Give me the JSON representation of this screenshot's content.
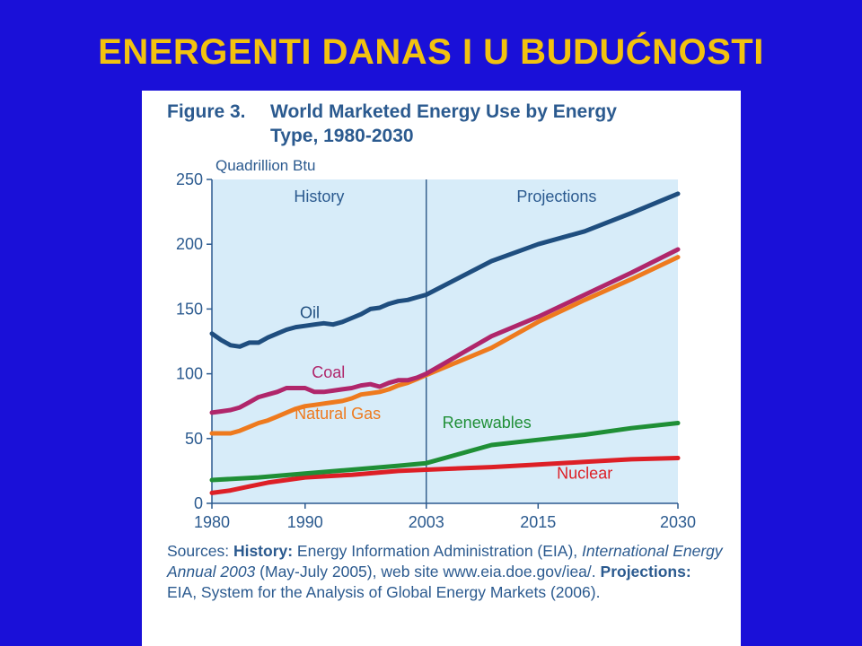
{
  "slide": {
    "title": "ENERGENTI DANAS I U BUDUĆNOSTI"
  },
  "figure": {
    "number": "Figure 3.",
    "title_line1": "World Marketed Energy Use by Energy",
    "title_line2": "Type, 1980-2030",
    "units": "Quadrillion Btu",
    "region_left": "History",
    "region_right": "Projections"
  },
  "sources": {
    "lead": "Sources: ",
    "history_label": "History:",
    "history_text": " Energy Information Administration (EIA), ",
    "publication": "International Energy Annual 2003",
    "history_text2": " (May-July 2005), web site www.eia.doe.gov/iea/. ",
    "projections_label": "Projections:",
    "projections_text": " EIA, System for the Analysis of Global Energy Markets (2006)."
  },
  "colors": {
    "background": "#1a10d8",
    "title": "#f2c20f",
    "plot_area": "#d7ecf9",
    "text": "#2b5a8f",
    "oil": "#1f4e7f",
    "coal": "#b0266b",
    "natural_gas": "#ee7a1e",
    "renewables": "#1f8f36",
    "nuclear": "#dd1f26"
  },
  "chart_data": {
    "type": "line",
    "title": "World Marketed Energy Use by Energy Type, 1980-2030",
    "ylabel": "Quadrillion Btu",
    "xlim": [
      1980,
      2030
    ],
    "ylim": [
      0,
      250
    ],
    "x_ticks": [
      1980,
      1990,
      2003,
      2015,
      2030
    ],
    "x_tick_labels": [
      "1980",
      "1990",
      "2003",
      "2015",
      "2030"
    ],
    "y_ticks": [
      0,
      50,
      100,
      150,
      200,
      250
    ],
    "history_end": 2003,
    "grid": false,
    "series": [
      {
        "name": "Oil",
        "color_key": "oil",
        "x": [
          1980,
          1981,
          1982,
          1983,
          1984,
          1985,
          1986,
          1987,
          1988,
          1989,
          1990,
          1991,
          1992,
          1993,
          1994,
          1995,
          1996,
          1997,
          1998,
          1999,
          2000,
          2001,
          2002,
          2003,
          2010,
          2015,
          2020,
          2025,
          2030
        ],
        "values": [
          131,
          126,
          122,
          121,
          124,
          124,
          128,
          131,
          134,
          136,
          137,
          138,
          139,
          138,
          140,
          143,
          146,
          150,
          151,
          154,
          156,
          157,
          159,
          161,
          187,
          200,
          210,
          224,
          239
        ]
      },
      {
        "name": "Coal",
        "color_key": "coal",
        "x": [
          1980,
          1981,
          1982,
          1983,
          1984,
          1985,
          1986,
          1987,
          1988,
          1989,
          1990,
          1991,
          1992,
          1993,
          1994,
          1995,
          1996,
          1997,
          1998,
          1999,
          2000,
          2001,
          2002,
          2003,
          2010,
          2015,
          2020,
          2025,
          2030
        ],
        "values": [
          70,
          71,
          72,
          74,
          78,
          82,
          84,
          86,
          89,
          89,
          89,
          86,
          86,
          87,
          88,
          89,
          91,
          92,
          90,
          93,
          95,
          95,
          97,
          100,
          129,
          144,
          161,
          178,
          196
        ]
      },
      {
        "name": "Natural Gas",
        "color_key": "natural_gas",
        "x": [
          1980,
          1981,
          1982,
          1983,
          1984,
          1985,
          1986,
          1987,
          1988,
          1989,
          1990,
          1991,
          1992,
          1993,
          1994,
          1995,
          1996,
          1997,
          1998,
          1999,
          2000,
          2001,
          2002,
          2003,
          2010,
          2015,
          2020,
          2025,
          2030
        ],
        "values": [
          54,
          54,
          54,
          56,
          59,
          62,
          64,
          67,
          70,
          73,
          75,
          76,
          77,
          78,
          79,
          81,
          84,
          85,
          86,
          88,
          91,
          93,
          96,
          99,
          120,
          140,
          157,
          173,
          190
        ]
      },
      {
        "name": "Renewables",
        "color_key": "renewables",
        "x": [
          1980,
          1985,
          1990,
          1995,
          2000,
          2003,
          2010,
          2015,
          2020,
          2025,
          2030
        ],
        "values": [
          18,
          20,
          23,
          26,
          29,
          31,
          45,
          49,
          53,
          58,
          62
        ]
      },
      {
        "name": "Nuclear",
        "color_key": "nuclear",
        "x": [
          1980,
          1982,
          1984,
          1986,
          1988,
          1990,
          1995,
          2000,
          2003,
          2010,
          2015,
          2020,
          2025,
          2030
        ],
        "values": [
          8,
          10,
          13,
          16,
          18,
          20,
          22,
          25,
          26,
          28,
          30,
          32,
          34,
          35
        ]
      }
    ]
  }
}
